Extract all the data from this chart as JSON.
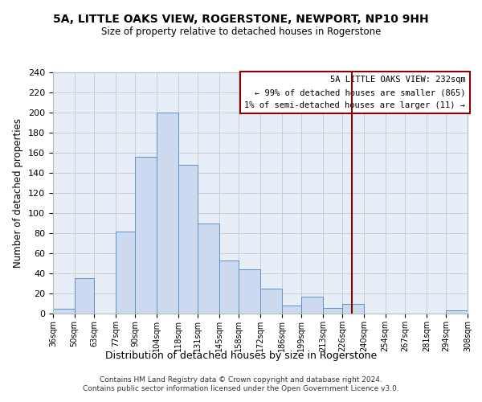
{
  "title1": "5A, LITTLE OAKS VIEW, ROGERSTONE, NEWPORT, NP10 9HH",
  "title2": "Size of property relative to detached houses in Rogerstone",
  "xlabel": "Distribution of detached houses by size in Rogerstone",
  "ylabel": "Number of detached properties",
  "bin_edges": [
    36,
    50,
    63,
    77,
    90,
    104,
    118,
    131,
    145,
    158,
    172,
    186,
    199,
    213,
    226,
    240,
    254,
    267,
    281,
    294,
    308
  ],
  "bin_labels": [
    "36sqm",
    "50sqm",
    "63sqm",
    "77sqm",
    "90sqm",
    "104sqm",
    "118sqm",
    "131sqm",
    "145sqm",
    "158sqm",
    "172sqm",
    "186sqm",
    "199sqm",
    "213sqm",
    "226sqm",
    "240sqm",
    "254sqm",
    "267sqm",
    "281sqm",
    "294sqm",
    "308sqm"
  ],
  "counts": [
    5,
    35,
    0,
    82,
    156,
    200,
    148,
    90,
    53,
    44,
    25,
    8,
    17,
    6,
    10,
    0,
    0,
    0,
    0,
    3
  ],
  "bar_color": "#ccd9ee",
  "bar_edge_color": "#6090c0",
  "bar_linewidth": 0.7,
  "vline_x": 232,
  "vline_color": "#8b0000",
  "vline_linewidth": 1.5,
  "vline_label": "5A LITTLE OAKS VIEW: 232sqm",
  "legend_line2": "← 99% of detached houses are smaller (865)",
  "legend_line3": "1% of semi-detached houses are larger (11) →",
  "legend_box_color": "#8b0000",
  "legend_bg_color": "#ffffff",
  "ylim": [
    0,
    240
  ],
  "yticks": [
    0,
    20,
    40,
    60,
    80,
    100,
    120,
    140,
    160,
    180,
    200,
    220,
    240
  ],
  "grid_color": "#cccccc",
  "bg_color": "#e8eef8",
  "footnote1": "Contains HM Land Registry data © Crown copyright and database right 2024.",
  "footnote2": "Contains public sector information licensed under the Open Government Licence v3.0."
}
